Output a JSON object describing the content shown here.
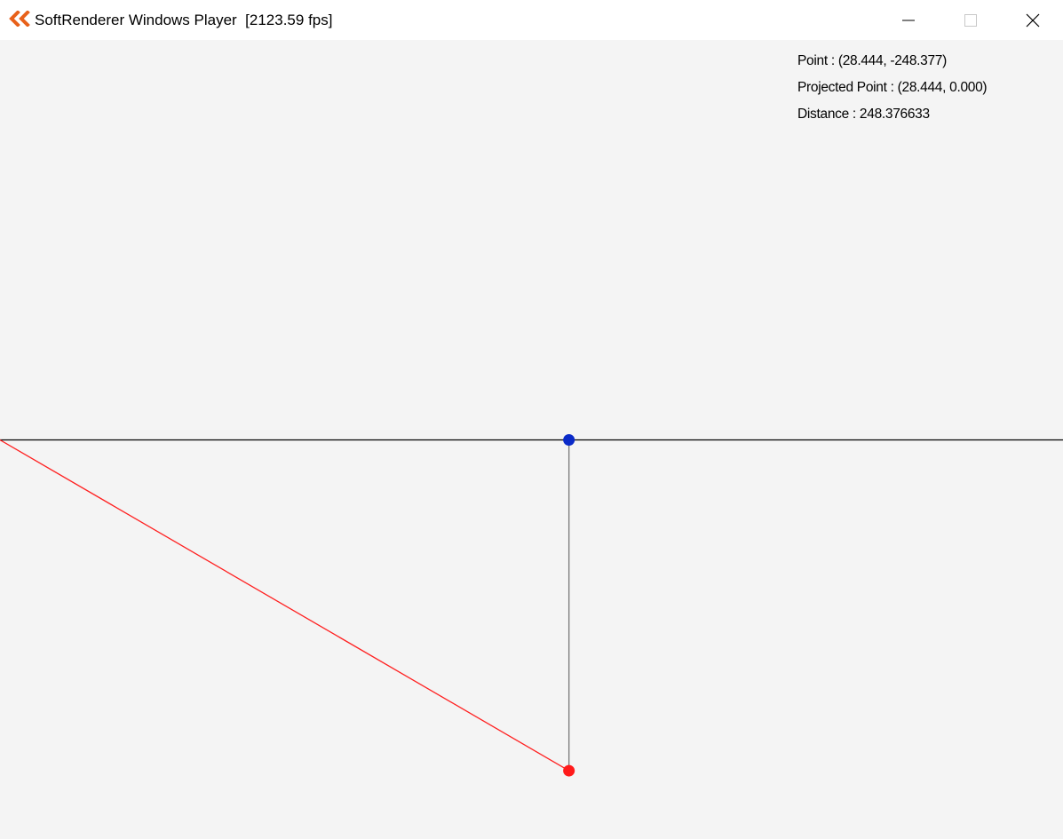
{
  "window": {
    "title": "SoftRenderer Windows Player",
    "fps_display": "[2123.59 fps]",
    "controls": {
      "minimize": "minimize",
      "maximize": "maximize",
      "close": "close"
    }
  },
  "hud": {
    "point_text": "Point : (28.444, -248.377)",
    "projected_text": "Projected Point : (28.444, 0.000)",
    "distance_text": "Distance : 248.376633"
  },
  "scene": {
    "point": {
      "x": 28.444,
      "y": -248.377
    },
    "projected_point": {
      "x": 28.444,
      "y": 0.0
    },
    "distance": 248.376633,
    "colors": {
      "background": "#f4f4f4",
      "axis_line": "#000000",
      "point": "#ff1a1a",
      "projected_point": "#0a2ac8",
      "connector": "#808080",
      "red_line": "#ff2020",
      "app_icon": "#e8611a"
    }
  }
}
